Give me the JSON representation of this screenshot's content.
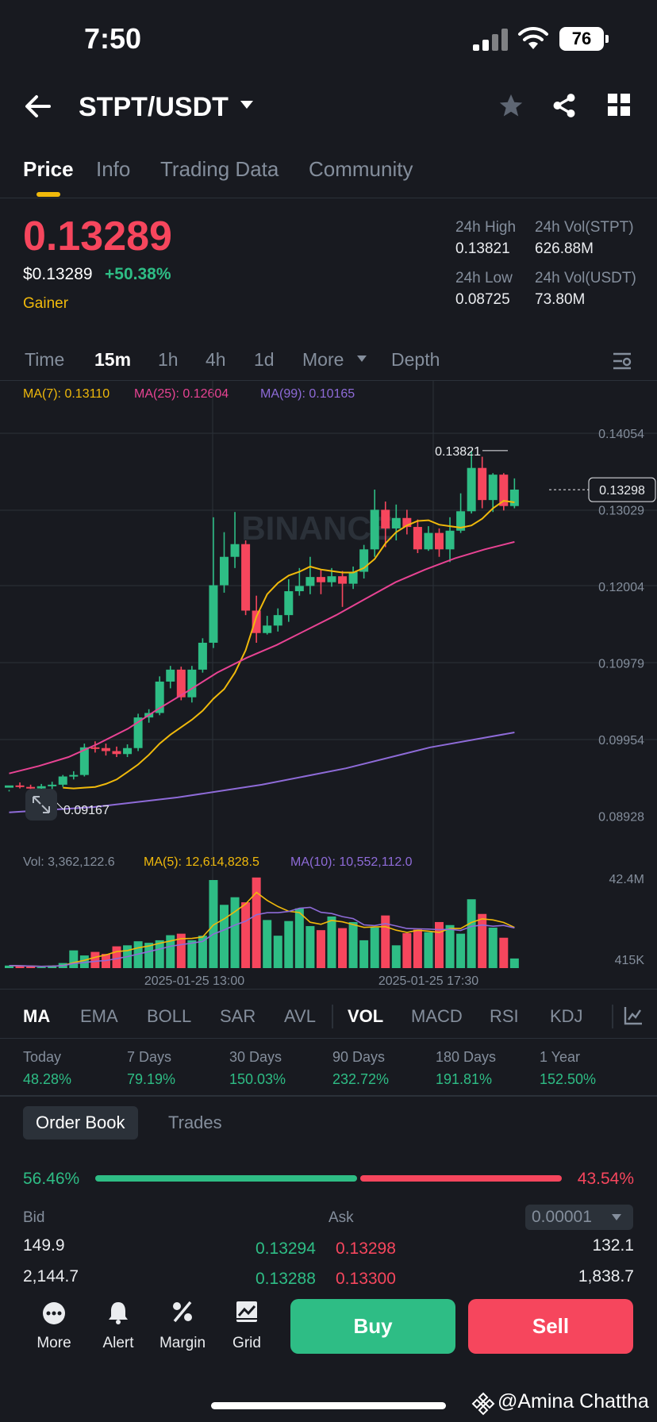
{
  "status_bar": {
    "time": "7:50",
    "battery": "76"
  },
  "header": {
    "pair": "STPT/USDT"
  },
  "tabs": [
    "Price",
    "Info",
    "Trading Data",
    "Community"
  ],
  "price": {
    "last": "0.13289",
    "fiat": "$0.13289",
    "change": "+50.38%",
    "tag": "Gainer",
    "high_label": "24h High",
    "high": "0.13821",
    "low_label": "24h Low",
    "low": "0.08725",
    "vol_base_label": "24h Vol(STPT)",
    "vol_base": "626.88M",
    "vol_quote_label": "24h Vol(USDT)",
    "vol_quote": "73.80M"
  },
  "intervals": [
    "Time",
    "15m",
    "1h",
    "4h",
    "1d",
    "More",
    "Depth"
  ],
  "ma_legend": {
    "ma7": "MA(7): 0.13110",
    "ma25": "MA(25): 0.12604",
    "ma99": "MA(99): 0.10165"
  },
  "colors": {
    "up": "#2ebd85",
    "down": "#f6465d",
    "ma7": "#f0b90b",
    "ma25": "#e84393",
    "ma99": "#8e6bd8",
    "accent": "#f0b90b"
  },
  "chart_data": {
    "type": "candlestick",
    "interval": "15m",
    "y_ticks": [
      "0.14054",
      "0.13029",
      "0.12004",
      "0.10979",
      "0.09954",
      "0.08928"
    ],
    "ylim": [
      0.08928,
      0.14054
    ],
    "x_ticks": [
      "2025-01-25 13:00",
      "2025-01-25 17:30"
    ],
    "high_marker": "0.13821",
    "low_marker": "0.09167",
    "current_price_tag": "0.13298",
    "candles": [
      [
        0.0931,
        0.0934,
        0.0928,
        0.0926
      ],
      [
        0.0934,
        0.0932,
        0.0938,
        0.093
      ],
      [
        0.0932,
        0.093,
        0.0935,
        0.0927
      ],
      [
        0.093,
        0.0933,
        0.0936,
        0.0927
      ],
      [
        0.0933,
        0.0935,
        0.0939,
        0.0929
      ],
      [
        0.0935,
        0.0946,
        0.0948,
        0.0932
      ],
      [
        0.0946,
        0.0948,
        0.0953,
        0.0942
      ],
      [
        0.0948,
        0.0985,
        0.099,
        0.0946
      ],
      [
        0.0985,
        0.0984,
        0.0993,
        0.0978
      ],
      [
        0.0984,
        0.098,
        0.099,
        0.0974
      ],
      [
        0.098,
        0.0976,
        0.0986,
        0.0972
      ],
      [
        0.0976,
        0.0984,
        0.0989,
        0.0972
      ],
      [
        0.0984,
        0.1025,
        0.103,
        0.098
      ],
      [
        0.1025,
        0.1031,
        0.1036,
        0.1018
      ],
      [
        0.1031,
        0.1073,
        0.108,
        0.1028
      ],
      [
        0.1073,
        0.1089,
        0.1094,
        0.1064
      ],
      [
        0.1089,
        0.1052,
        0.1093,
        0.1048
      ],
      [
        0.1052,
        0.1089,
        0.1094,
        0.1045
      ],
      [
        0.1089,
        0.1125,
        0.1131,
        0.1085
      ],
      [
        0.1125,
        0.1202,
        0.1293,
        0.1118
      ],
      [
        0.1202,
        0.124,
        0.1273,
        0.1192
      ],
      [
        0.124,
        0.1257,
        0.13,
        0.1225
      ],
      [
        0.1257,
        0.1168,
        0.1262,
        0.1162
      ],
      [
        0.1168,
        0.1138,
        0.1188,
        0.1125
      ],
      [
        0.1138,
        0.1148,
        0.1161,
        0.1136
      ],
      [
        0.1148,
        0.1162,
        0.1171,
        0.114
      ],
      [
        0.1162,
        0.1194,
        0.121,
        0.1153
      ],
      [
        0.1194,
        0.1201,
        0.1225,
        0.1188
      ],
      [
        0.1201,
        0.1213,
        0.124,
        0.119
      ],
      [
        0.1213,
        0.1206,
        0.1223,
        0.119
      ],
      [
        0.1206,
        0.1214,
        0.1225,
        0.12
      ],
      [
        0.1214,
        0.1204,
        0.1221,
        0.1173
      ],
      [
        0.1204,
        0.122,
        0.1227,
        0.1197
      ],
      [
        0.122,
        0.125,
        0.1256,
        0.1211
      ],
      [
        0.125,
        0.1303,
        0.133,
        0.124
      ],
      [
        0.1303,
        0.1278,
        0.1314,
        0.1253
      ],
      [
        0.1278,
        0.1292,
        0.131,
        0.1262
      ],
      [
        0.1292,
        0.128,
        0.1303,
        0.127
      ],
      [
        0.128,
        0.125,
        0.129,
        0.1245
      ],
      [
        0.125,
        0.1272,
        0.1281,
        0.1248
      ],
      [
        0.1272,
        0.125,
        0.1278,
        0.124
      ],
      [
        0.125,
        0.1275,
        0.1293,
        0.1233
      ],
      [
        0.1275,
        0.1301,
        0.1325,
        0.1272
      ],
      [
        0.1301,
        0.1359,
        0.1382,
        0.1298
      ],
      [
        0.1359,
        0.1316,
        0.1374,
        0.1305
      ],
      [
        0.1316,
        0.135,
        0.1352,
        0.13
      ],
      [
        0.135,
        0.1308,
        0.1352,
        0.1302
      ],
      [
        0.1308,
        0.133,
        0.1345,
        0.1305
      ]
    ],
    "ma7": [
      0.0931,
      0.093,
      0.0931,
      0.0932,
      0.0936,
      0.0942,
      0.0952,
      0.0962,
      0.0975,
      0.099,
      0.1002,
      0.1012,
      0.1022,
      0.1034,
      0.105,
      0.1063,
      0.1085,
      0.1115,
      0.116,
      0.119,
      0.1205,
      0.1215,
      0.122,
      0.1227,
      0.1223,
      0.1221,
      0.1219,
      0.1219,
      0.1225,
      0.1237,
      0.1258,
      0.1273,
      0.1282,
      0.1288,
      0.1289,
      0.1283,
      0.1281,
      0.1279,
      0.1282,
      0.1291,
      0.1305,
      0.1315,
      0.1313
    ],
    "ma25": [
      0.095,
      0.096,
      0.0972,
      0.099,
      0.101,
      0.1036,
      0.106,
      0.1085,
      0.1105,
      0.1122,
      0.1142,
      0.1162,
      0.1184,
      0.1206,
      0.1223,
      0.1238,
      0.125,
      0.126
    ],
    "ma99": [
      0.0898,
      0.0905,
      0.0918,
      0.0935,
      0.0957,
      0.0985,
      0.1005
    ]
  },
  "volume": {
    "legend": {
      "vol": "Vol: 3,362,122.6",
      "ma5": "MA(5): 12,614,828.5",
      "ma10": "MA(10): 10,552,112.0"
    },
    "ticks": [
      "42.4M",
      "415K"
    ],
    "values_m": [
      0.5,
      0.4,
      0.3,
      0.2,
      0.5,
      1.0,
      3.5,
      2.5,
      3.2,
      2.8,
      4.3,
      4.5,
      5.3,
      5.0,
      5.5,
      6.5,
      6.8,
      5.5,
      6.4,
      17.4,
      12.5,
      14.0,
      13.0,
      17.9,
      9.5,
      6.4,
      9.3,
      11.8,
      8.3,
      7.5,
      10.2,
      7.9,
      9.1,
      5.5,
      8.0,
      10.4,
      4.5,
      6.9,
      7.6,
      7.1,
      9.1,
      8.5,
      6.8,
      13.6,
      10.7,
      8.0,
      6.0,
      1.9
    ]
  },
  "indicators": [
    "MA",
    "EMA",
    "BOLL",
    "SAR",
    "AVL",
    "VOL",
    "MACD",
    "RSI",
    "KDJ"
  ],
  "performance": [
    {
      "label": "Today",
      "value": "48.28%"
    },
    {
      "label": "7 Days",
      "value": "79.19%"
    },
    {
      "label": "30 Days",
      "value": "150.03%"
    },
    {
      "label": "90 Days",
      "value": "232.72%"
    },
    {
      "label": "180 Days",
      "value": "191.81%"
    },
    {
      "label": "1 Year",
      "value": "152.50%"
    }
  ],
  "order_book": {
    "tabs": [
      "Order Book",
      "Trades"
    ],
    "bid_pct": "56.46%",
    "ask_pct": "43.54%",
    "bid_ratio": 0.5646,
    "bid_label": "Bid",
    "ask_label": "Ask",
    "tick": "0.00001",
    "rows": [
      {
        "bid_qty": "149.9",
        "bid_price": "0.13294",
        "ask_price": "0.13298",
        "ask_qty": "132.1"
      },
      {
        "bid_qty": "2,144.7",
        "bid_price": "0.13288",
        "ask_price": "0.13300",
        "ask_qty": "1,838.7"
      }
    ]
  },
  "bottom_nav": [
    "More",
    "Alert",
    "Margin",
    "Grid"
  ],
  "actions": {
    "buy": "Buy",
    "sell": "Sell"
  },
  "watermark": "@Amina Chattha",
  "chart_watermark": "BINANCE"
}
